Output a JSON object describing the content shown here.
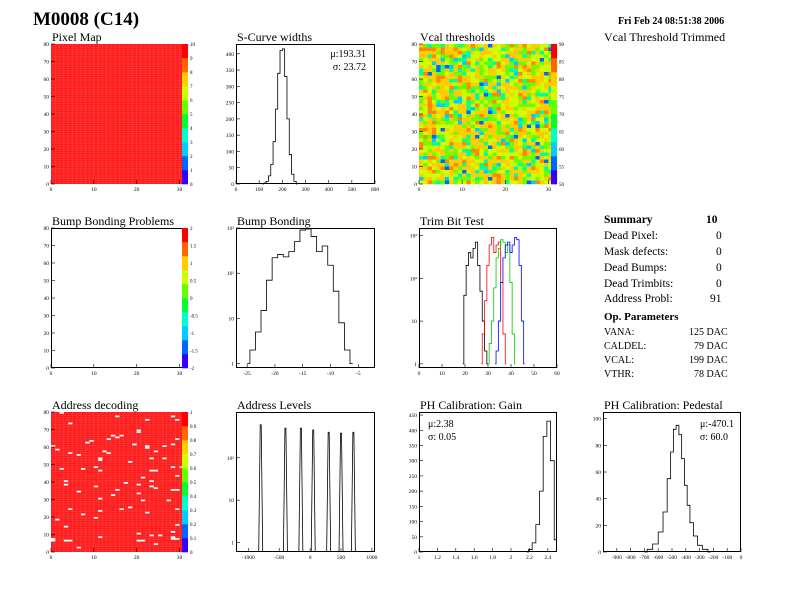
{
  "header": {
    "title": "M0008 (C14)",
    "date": "Fri Feb 24 08:51:38 2006"
  },
  "vcal_trimmed_label": "Vcal Threshold Trimmed",
  "summary": {
    "title": "Summary",
    "count": "10",
    "rows": [
      {
        "label": "Dead Pixel:",
        "value": "0"
      },
      {
        "label": "Mask defects:",
        "value": "0"
      },
      {
        "label": "Dead Bumps:",
        "value": "0"
      },
      {
        "label": "Dead Trimbits:",
        "value": "0"
      },
      {
        "label": "Address Probl:",
        "value": "91"
      }
    ]
  },
  "op_params": {
    "title": "Op. Parameters",
    "rows": [
      {
        "label": "VANA:",
        "value": "125 DAC"
      },
      {
        "label": "CALDEL:",
        "value": "79 DAC"
      },
      {
        "label": "VCAL:",
        "value": "199 DAC"
      },
      {
        "label": "VTHR:",
        "value": "78 DAC"
      }
    ]
  },
  "colors": {
    "red": "#ff1a1a",
    "palette": [
      "#3300ff",
      "#0066ff",
      "#00ccff",
      "#00ffcc",
      "#00ff33",
      "#66ff00",
      "#ccff00",
      "#ffcc00",
      "#ff6600",
      "#ff0000"
    ],
    "trim_series": [
      "#000000",
      "#ff0000",
      "#00cc00",
      "#0000ff"
    ]
  },
  "chart_data": [
    {
      "id": "pixel-map",
      "type": "heatmap",
      "title": "Pixel Map",
      "xlim": [
        0,
        32
      ],
      "ylim": [
        0,
        80
      ],
      "x_ticks": [
        "0",
        "10",
        "20",
        "30"
      ],
      "y_ticks": [
        "0",
        "10",
        "20",
        "30",
        "40",
        "50",
        "60",
        "70",
        "80"
      ],
      "z_ticks": [
        "0",
        "1",
        "2",
        "3",
        "4",
        "5",
        "6",
        "7",
        "8",
        "9",
        "10"
      ],
      "zlim": [
        0,
        10
      ],
      "fill_value": 10
    },
    {
      "id": "scurve-widths",
      "type": "line",
      "title": "S-Curve widths",
      "xlim": [
        0,
        600
      ],
      "ylim": [
        0,
        430
      ],
      "x_ticks": [
        "0",
        "100",
        "200",
        "300",
        "400",
        "500",
        "600"
      ],
      "y_ticks": [
        "0",
        "50",
        "100",
        "150",
        "200",
        "250",
        "300",
        "350",
        "400"
      ],
      "stats": [
        "μ:193.31",
        "σ: 23.72"
      ],
      "x": [
        115,
        125,
        135,
        145,
        155,
        165,
        175,
        185,
        195,
        205,
        215,
        225,
        235,
        245,
        255,
        265
      ],
      "values": [
        0,
        3,
        8,
        25,
        60,
        130,
        230,
        340,
        410,
        415,
        330,
        200,
        90,
        30,
        8,
        0
      ]
    },
    {
      "id": "vcal-thresholds",
      "type": "heatmap",
      "title": "Vcal thresholds",
      "xlim": [
        0,
        32
      ],
      "ylim": [
        0,
        80
      ],
      "x_ticks": [
        "0",
        "10",
        "20",
        "30"
      ],
      "y_ticks": [
        "0",
        "10",
        "20",
        "30",
        "40",
        "50",
        "60",
        "70",
        "80"
      ],
      "z_ticks": [
        "50",
        "55",
        "60",
        "65",
        "70",
        "75",
        "80",
        "85",
        "90"
      ],
      "zlim": [
        50,
        90
      ],
      "z_mean": 80
    },
    {
      "id": "bump-bonding-problems",
      "type": "heatmap",
      "title": "Bump Bonding Problems",
      "xlim": [
        0,
        32
      ],
      "ylim": [
        0,
        80
      ],
      "x_ticks": [
        "0",
        "10",
        "20",
        "30"
      ],
      "y_ticks": [
        "0",
        "10",
        "20",
        "30",
        "40",
        "50",
        "60",
        "70",
        "80"
      ],
      "z_ticks": [
        "-2",
        "-1.5",
        "-1",
        "-0.5",
        "0",
        "0.5",
        "1",
        "1.5",
        "2"
      ],
      "zlim": [
        -2,
        2
      ]
    },
    {
      "id": "bump-bonding",
      "type": "line",
      "title": "Bump Bonding",
      "xlim": [
        -27,
        -2
      ],
      "ylim": [
        0.8,
        1000
      ],
      "yscale": "log",
      "x_ticks": [
        "-25",
        "-20",
        "-15",
        "-10",
        "-5"
      ],
      "x_tick_values": [
        -25,
        -20,
        -15,
        -10,
        -5
      ],
      "y_ticks": [
        "1",
        "10",
        "10²",
        "10³"
      ],
      "x": [
        -25,
        -24,
        -23,
        -22,
        -21,
        -20,
        -19,
        -18,
        -17,
        -16,
        -15,
        -14,
        -13,
        -12,
        -11,
        -10,
        -9,
        -8,
        -7,
        -6
      ],
      "values": [
        1,
        2,
        5,
        15,
        70,
        220,
        260,
        230,
        300,
        500,
        900,
        950,
        650,
        300,
        400,
        150,
        40,
        8,
        2,
        1
      ]
    },
    {
      "id": "trim-bit-test",
      "type": "line",
      "title": "Trim Bit Test",
      "xlim": [
        0,
        60
      ],
      "ylim": [
        0.8,
        1500
      ],
      "yscale": "log",
      "x_ticks": [
        "0",
        "10",
        "20",
        "30",
        "40",
        "50",
        "60"
      ],
      "y_ticks": [
        "1",
        "10",
        "10²",
        "10³"
      ],
      "series": [
        {
          "x": [
            19,
            20,
            21,
            22,
            23,
            24,
            25,
            26,
            27,
            28,
            29,
            30
          ],
          "values": [
            1,
            40,
            200,
            400,
            300,
            500,
            700,
            200,
            50,
            10,
            2,
            1
          ]
        },
        {
          "x": [
            27,
            28,
            29,
            30,
            31,
            32,
            33,
            34,
            35,
            36,
            37,
            38
          ],
          "values": [
            1,
            5,
            30,
            200,
            600,
            900,
            400,
            600,
            700,
            80,
            5,
            1
          ]
        },
        {
          "x": [
            30,
            31,
            32,
            33,
            34,
            35,
            36,
            37,
            38,
            39,
            40,
            41,
            42
          ],
          "values": [
            1,
            3,
            10,
            60,
            300,
            500,
            800,
            700,
            400,
            600,
            80,
            5,
            1
          ]
        },
        {
          "x": [
            33,
            34,
            35,
            36,
            37,
            38,
            39,
            40,
            41,
            42,
            43,
            44,
            45,
            46
          ],
          "values": [
            1,
            2,
            10,
            80,
            300,
            600,
            700,
            400,
            600,
            900,
            800,
            200,
            10,
            1
          ]
        }
      ]
    },
    {
      "id": "address-decoding",
      "type": "heatmap",
      "title": "Address decoding",
      "xlim": [
        0,
        32
      ],
      "ylim": [
        0,
        80
      ],
      "x_ticks": [
        "0",
        "10",
        "20",
        "30"
      ],
      "y_ticks": [
        "0",
        "10",
        "20",
        "30",
        "40",
        "50",
        "60",
        "70",
        "80"
      ],
      "z_ticks": [
        "0",
        "0.1",
        "0.2",
        "0.3",
        "0.4",
        "0.5",
        "0.6",
        "0.7",
        "0.8",
        "0.9",
        "1"
      ],
      "zlim": [
        0,
        1
      ],
      "fill_value": 1,
      "bad_pixel_count": 91
    },
    {
      "id": "address-levels",
      "type": "line",
      "title": "Address Levels",
      "xlim": [
        -1200,
        1050
      ],
      "ylim": [
        0.6,
        1200
      ],
      "yscale": "log",
      "x_ticks": [
        "-1000",
        "-500",
        "0",
        "500",
        "1000"
      ],
      "x_tick_values": [
        -1000,
        -500,
        0,
        500,
        1000
      ],
      "y_ticks": [
        "1",
        "10",
        "10²"
      ],
      "peaks": [
        -800,
        -400,
        -150,
        50,
        300,
        500,
        700
      ],
      "peak_heights": [
        600,
        500,
        500,
        450,
        400,
        380,
        400
      ]
    },
    {
      "id": "ph-calibration-gain",
      "type": "line",
      "title": "PH Calibration: Gain",
      "xlim": [
        1.0,
        2.5
      ],
      "ylim": [
        0,
        460
      ],
      "x_ticks": [
        "1",
        "1.2",
        "1.4",
        "1.6",
        "1.8",
        "2",
        "2.2",
        "2.4"
      ],
      "y_ticks": [
        "0",
        "50",
        "100",
        "150",
        "200",
        "250",
        "300",
        "350",
        "400",
        "450"
      ],
      "stats": [
        "μ:2.38",
        "σ: 0.05"
      ],
      "x": [
        2.17,
        2.21,
        2.25,
        2.29,
        2.33,
        2.37,
        2.41,
        2.45,
        2.49
      ],
      "values": [
        0,
        8,
        30,
        90,
        200,
        380,
        430,
        300,
        40
      ]
    },
    {
      "id": "ph-calibration-pedestal",
      "type": "line",
      "title": "PH Calibration: Pedestal",
      "xlim": [
        -1000,
        0
      ],
      "ylim": [
        0,
        105
      ],
      "x_ticks": [
        "-900",
        "-800",
        "-700",
        "-600",
        "-500",
        "-400",
        "-300",
        "-200",
        "-100",
        "0"
      ],
      "x_tick_values": [
        -900,
        -800,
        -700,
        -600,
        -500,
        -400,
        -300,
        -200,
        -100,
        0
      ],
      "y_ticks": [
        "0",
        "20",
        "40",
        "60",
        "80",
        "100"
      ],
      "stats": [
        "μ:-470.1",
        "σ: 60.0"
      ],
      "x": [
        -700,
        -660,
        -620,
        -580,
        -550,
        -520,
        -500,
        -480,
        -460,
        -440,
        -420,
        -400,
        -380,
        -360,
        -330,
        -300,
        -260,
        -220
      ],
      "values": [
        0,
        2,
        6,
        15,
        30,
        55,
        75,
        92,
        95,
        88,
        70,
        50,
        35,
        22,
        12,
        5,
        2,
        0
      ]
    }
  ]
}
